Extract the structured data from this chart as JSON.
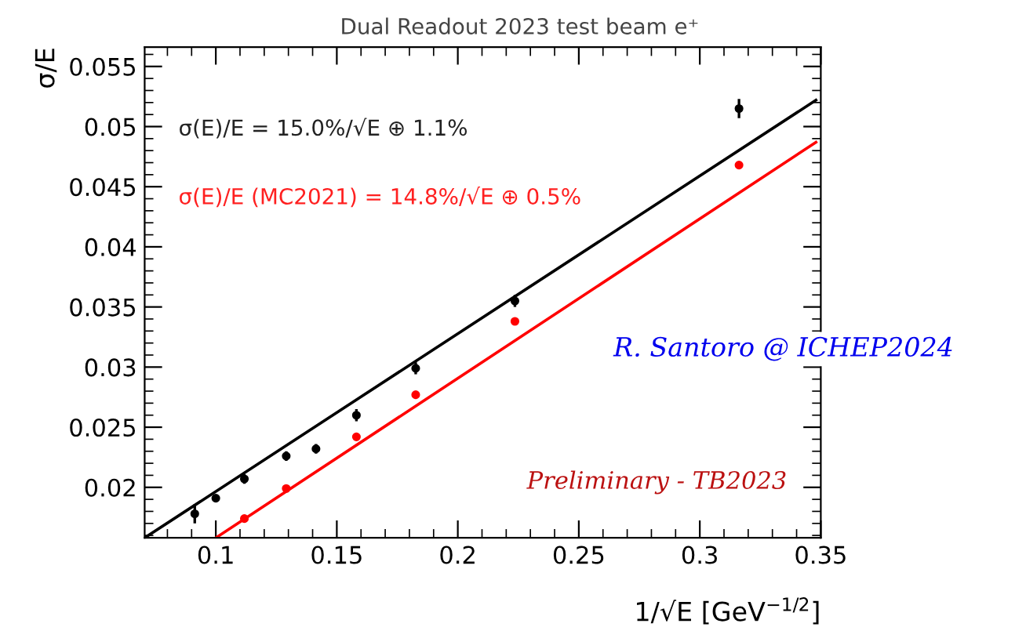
{
  "chart_data": {
    "type": "scatter",
    "title": "Dual Readout 2023 test beam e⁺",
    "xlabel": "1/√E [GeV$^{−1/2}$]",
    "ylabel": "σ/E",
    "xlim": [
      0.0706,
      0.35
    ],
    "ylim": [
      0.0158,
      0.0566
    ],
    "xticks": [
      0.1,
      0.15,
      0.2,
      0.25,
      0.3,
      0.35
    ],
    "yticks": [
      0.02,
      0.025,
      0.03,
      0.035,
      0.04,
      0.045,
      0.05,
      0.055
    ],
    "grid": false,
    "legend": false,
    "series": [
      {
        "marker": "circle",
        "color": "#000000",
        "x": [
          0.0913,
          0.1,
          0.1118,
          0.1291,
          0.1414,
          0.1581,
          0.1826,
          0.2236,
          0.3162
        ],
        "values": [
          0.0178,
          0.0191,
          0.0207,
          0.0226,
          0.0232,
          0.026,
          0.0299,
          0.0355,
          0.0515
        ],
        "errors": [
          0.0008,
          0.0003,
          0.0004,
          0.0004,
          0.0004,
          0.0005,
          0.0005,
          0.0005,
          0.0008
        ]
      },
      {
        "marker": "circle",
        "color": "#ff0000",
        "x": [
          0.1118,
          0.1291,
          0.1581,
          0.1826,
          0.2236,
          0.3162
        ],
        "values": [
          0.0174,
          0.0199,
          0.0242,
          0.0277,
          0.0338,
          0.0468
        ]
      },
      {
        "type": "line",
        "color": "#000000",
        "x": [
          0.0706,
          0.348
        ],
        "values": [
          0.0158,
          0.0522
        ]
      },
      {
        "type": "line",
        "color": "#ff0000",
        "x": [
          0.1,
          0.348
        ],
        "values": [
          0.0158,
          0.0487
        ]
      }
    ],
    "annotations": [
      "σ(E)/E = 15.0%/√E ⊕ 1.1%",
      "σ(E)/E (MC2021) = 14.8%/√E ⊕ 0.5%",
      "R. Santoro @ ICHEP2024",
      "Preliminary - TB2023"
    ]
  }
}
